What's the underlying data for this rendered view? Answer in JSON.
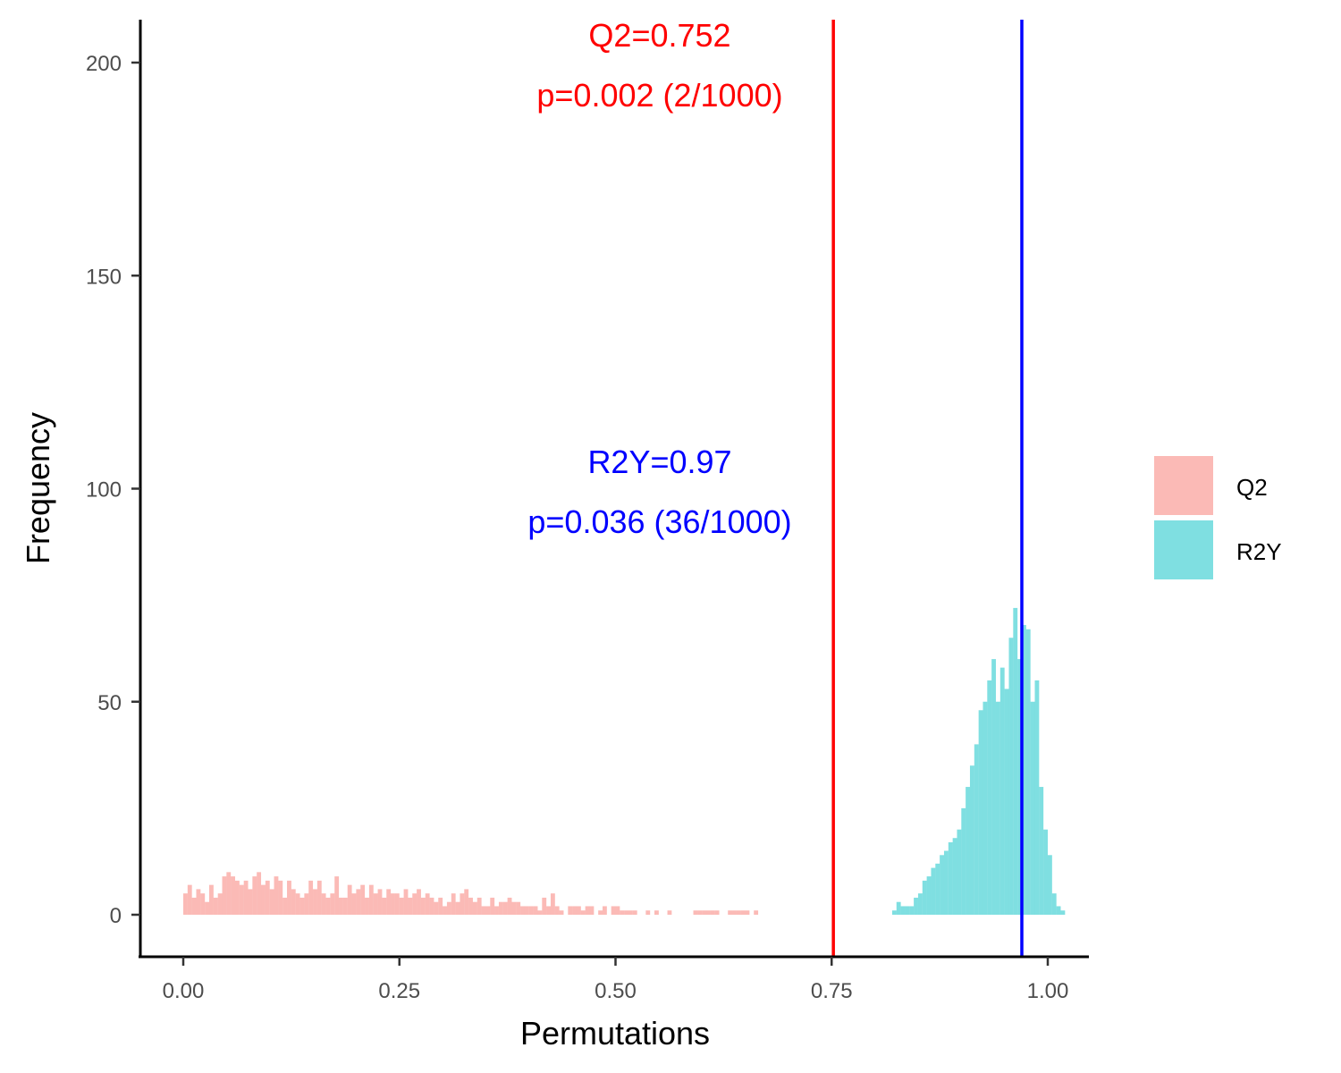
{
  "chart_data": {
    "type": "histogram",
    "xlabel": "Permutations",
    "ylabel": "Frequency",
    "xlim": [
      -0.025,
      1.0
    ],
    "ylim": [
      -10,
      210
    ],
    "x_ticks": [
      0.0,
      0.25,
      0.5,
      0.75,
      1.0
    ],
    "x_tick_labels": [
      "0.00",
      "0.25",
      "0.50",
      "0.75",
      "1.00"
    ],
    "y_ticks": [
      0,
      50,
      100,
      150,
      200
    ],
    "y_tick_labels": [
      "0",
      "50",
      "100",
      "150",
      "200"
    ],
    "grid": false,
    "legend_position": "right",
    "bin_width": 0.005,
    "series": [
      {
        "name": "Q2",
        "color": "#F8766D",
        "bin_start": 0.0,
        "counts": [
          5,
          7,
          4,
          6,
          5,
          3,
          7,
          4,
          5,
          9,
          10,
          9,
          8,
          7,
          8,
          6,
          9,
          10,
          7,
          8,
          6,
          9,
          8,
          4,
          8,
          6,
          5,
          4,
          5,
          8,
          6,
          8,
          5,
          4,
          5,
          9,
          4,
          4,
          7,
          5,
          6,
          7,
          4,
          7,
          5,
          6,
          4,
          6,
          5,
          5,
          4,
          6,
          4,
          5,
          6,
          4,
          5,
          4,
          3,
          4,
          2,
          3,
          5,
          3,
          5,
          6,
          4,
          3,
          4,
          2,
          2,
          4,
          2,
          3,
          3,
          4,
          3,
          3,
          2,
          2,
          2,
          2,
          1,
          4,
          2,
          5,
          2,
          1,
          0,
          2,
          2,
          2,
          1,
          2,
          2,
          0,
          1,
          2,
          0,
          2,
          2,
          1,
          1,
          1,
          1,
          0,
          0,
          1,
          0,
          1,
          0,
          0,
          1,
          0,
          0,
          0,
          0,
          0,
          1,
          1,
          1,
          1,
          1,
          1,
          0,
          0,
          1,
          1,
          1,
          1,
          1,
          0,
          1,
          0,
          0,
          0,
          0,
          0,
          0,
          0,
          0,
          0,
          0,
          0,
          0,
          0,
          0,
          0,
          0,
          0,
          0,
          0,
          0,
          0,
          0,
          0,
          0,
          0,
          0,
          0
        ]
      },
      {
        "name": "R2Y",
        "color": "#00BFC4",
        "bin_start": 0.82,
        "counts": [
          1,
          3,
          2,
          2,
          2,
          4,
          5,
          8,
          9,
          11,
          12,
          14,
          15,
          17,
          18,
          20,
          25,
          30,
          35,
          40,
          48,
          50,
          55,
          60,
          50,
          58,
          53,
          65,
          72,
          60,
          68,
          67,
          50,
          55,
          30,
          20,
          14,
          5,
          2,
          1,
          0
        ]
      }
    ],
    "vlines": [
      {
        "name": "Q2",
        "x": 0.752,
        "color": "#FF0000"
      },
      {
        "name": "R2Y",
        "x": 0.97,
        "color": "#0000FF"
      }
    ],
    "annotations": [
      {
        "lines": [
          "Q2=0.752",
          "p=0.002 (2/1000)"
        ],
        "color": "#FF0000"
      },
      {
        "lines": [
          "R2Y=0.97",
          "p=0.036 (36/1000)"
        ],
        "color": "#0000FF"
      }
    ],
    "legend": [
      {
        "label": "Q2",
        "color": "#F8766D"
      },
      {
        "label": "R2Y",
        "color": "#00BFC4"
      }
    ]
  }
}
